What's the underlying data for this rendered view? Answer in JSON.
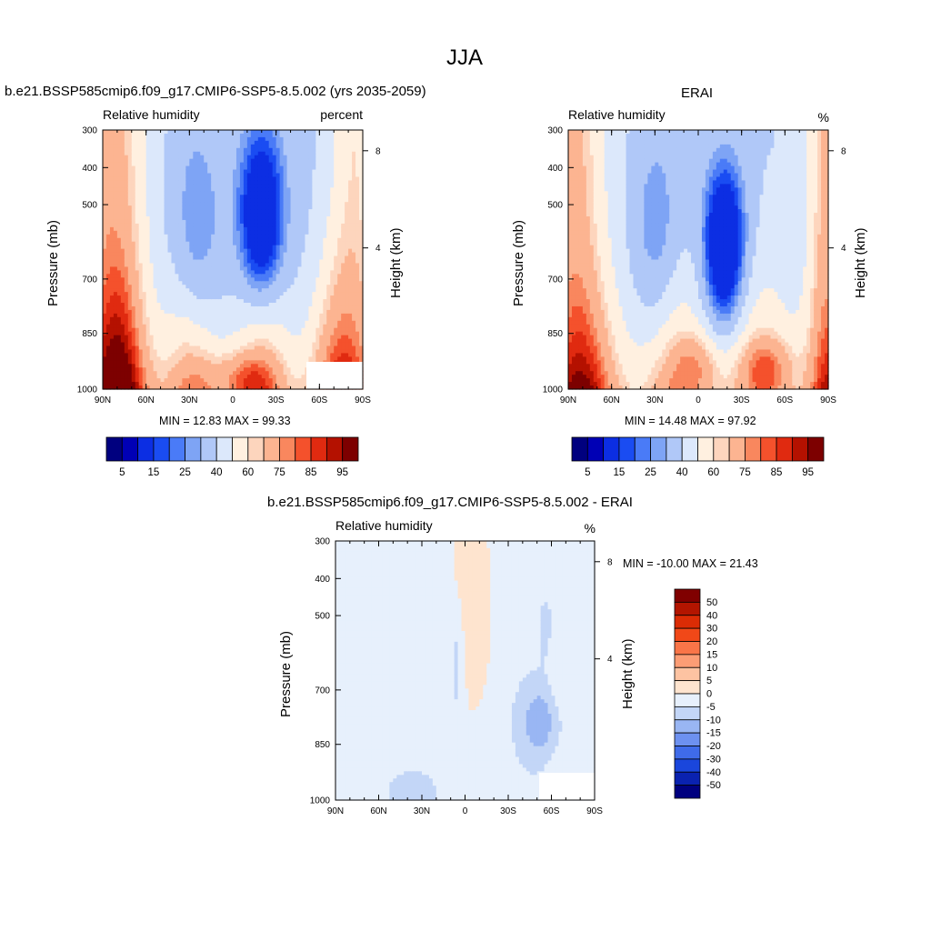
{
  "page_title": "JJA",
  "colorbar_labels": [
    "5",
    "15",
    "25",
    "40",
    "60",
    "75",
    "85",
    "95"
  ],
  "diff_colorbar_labels": [
    "50",
    "40",
    "30",
    "20",
    "15",
    "10",
    "5",
    "0",
    "-5",
    "-10",
    "-15",
    "-20",
    "-30",
    "-40",
    "-50"
  ],
  "chart_data": [
    {
      "type": "heatmap",
      "title": "b.e21.BSSP585cmip6.f09_g17.CMIP6-SSP5-8.5.002 (yrs 2035-2059)",
      "subtitle_left": "Relative humidity",
      "subtitle_right": "percent",
      "xlabel": "",
      "ylabel": "Pressure (mb)",
      "y2label": "Height (km)",
      "xticks": [
        "90N",
        "60N",
        "30N",
        "0",
        "30S",
        "60S",
        "90S"
      ],
      "yticks": [
        "300",
        "400",
        "500",
        "700",
        "850",
        "1000"
      ],
      "y2ticks": [
        "8",
        "4"
      ],
      "ylim": [
        1000,
        300
      ],
      "min_label": "MIN =  12.83  MAX =  99.33",
      "min": 12.83,
      "max": 99.33,
      "levels": [
        5,
        10,
        15,
        20,
        25,
        30,
        40,
        50,
        60,
        65,
        75,
        80,
        85,
        90,
        95
      ],
      "colorbar_labels": [
        "5",
        "15",
        "25",
        "40",
        "60",
        "75",
        "85",
        "95"
      ]
    },
    {
      "type": "heatmap",
      "title": "ERAI",
      "subtitle_left": "Relative humidity",
      "subtitle_right": "%",
      "xlabel": "",
      "ylabel": "Pressure (mb)",
      "y2label": "Height (km)",
      "xticks": [
        "90N",
        "60N",
        "30N",
        "0",
        "30S",
        "60S",
        "90S"
      ],
      "yticks": [
        "300",
        "400",
        "500",
        "700",
        "850",
        "1000"
      ],
      "y2ticks": [
        "8",
        "4"
      ],
      "ylim": [
        1000,
        300
      ],
      "min_label": "MIN =  14.48  MAX =  97.92",
      "min": 14.48,
      "max": 97.92,
      "levels": [
        5,
        10,
        15,
        20,
        25,
        30,
        40,
        50,
        60,
        65,
        75,
        80,
        85,
        90,
        95
      ],
      "colorbar_labels": [
        "5",
        "15",
        "25",
        "40",
        "60",
        "75",
        "85",
        "95"
      ]
    },
    {
      "type": "heatmap",
      "title": "b.e21.BSSP585cmip6.f09_g17.CMIP6-SSP5-8.5.002 - ERAI",
      "subtitle_left": "Relative humidity",
      "subtitle_right": "%",
      "xlabel": "",
      "ylabel": "Pressure (mb)",
      "y2label": "Height (km)",
      "xticks": [
        "90N",
        "60N",
        "30N",
        "0",
        "30S",
        "60S",
        "90S"
      ],
      "yticks": [
        "300",
        "400",
        "500",
        "700",
        "850",
        "1000"
      ],
      "y2ticks": [
        "8",
        "4"
      ],
      "ylim": [
        1000,
        300
      ],
      "min_label": "MIN = -10.00  MAX =  21.43",
      "min": -10.0,
      "max": 21.43,
      "levels": [
        -50,
        -40,
        -30,
        -20,
        -15,
        -10,
        -5,
        0,
        5,
        10,
        15,
        20,
        30,
        40,
        50
      ],
      "colorbar_labels": [
        "50",
        "40",
        "30",
        "20",
        "15",
        "10",
        "5",
        "0",
        "-5",
        "-10",
        "-15",
        "-20",
        "-30",
        "-40",
        "-50"
      ]
    }
  ],
  "palette": {
    "rh": [
      "#00007f",
      "#0000b5",
      "#0c2ee3",
      "#1a4cf2",
      "#4a7bf7",
      "#7ea4f5",
      "#b0c8f8",
      "#dce8fb",
      "#fff0e0",
      "#fdd5bd",
      "#fcb491",
      "#f9875e",
      "#f4512c",
      "#e02a10",
      "#b41100",
      "#7d0000"
    ],
    "diff": [
      "#800000",
      "#b31500",
      "#db2c05",
      "#f14818",
      "#f97548",
      "#fc9d75",
      "#fdc3a2",
      "#fee4cf",
      "#e7f0fc",
      "#c3d6f7",
      "#99b6f3",
      "#6d91f0",
      "#3f6be9",
      "#1a46dc",
      "#0a22b0",
      "#00007f"
    ]
  }
}
